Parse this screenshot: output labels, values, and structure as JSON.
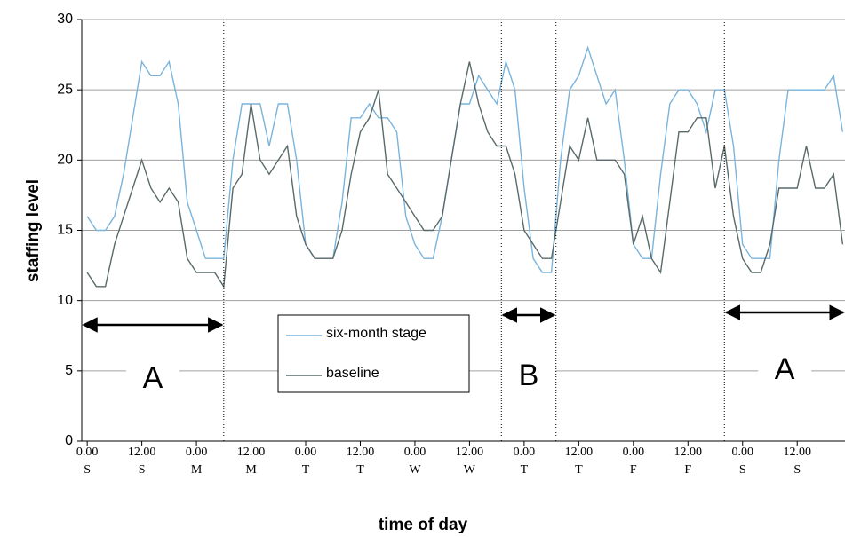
{
  "chart_data": {
    "type": "line",
    "x_label": "time of day",
    "y_label": "staffing level",
    "x": [
      0,
      2,
      4,
      6,
      8,
      10,
      12,
      14,
      16,
      18,
      20,
      22,
      24,
      26,
      28,
      30,
      32,
      34,
      36,
      38,
      40,
      42,
      44,
      46,
      48,
      50,
      52,
      54,
      56,
      58,
      60,
      62,
      64,
      66,
      68,
      70,
      72,
      74,
      76,
      78,
      80,
      82,
      84,
      86,
      88,
      90,
      92,
      94,
      96,
      98,
      100,
      102,
      104,
      106,
      108,
      110,
      112,
      114,
      116,
      118,
      120,
      122,
      124,
      126,
      128,
      130,
      132,
      134,
      136,
      138,
      140,
      142,
      144,
      146,
      148,
      150,
      152,
      154,
      156,
      158,
      160,
      162,
      164,
      166
    ],
    "series": [
      {
        "name": "six-month stage",
        "color": "#79b4dc",
        "values": [
          16,
          15,
          15,
          16,
          19,
          23,
          27,
          26,
          26,
          27,
          24,
          17,
          15,
          13,
          13,
          13,
          20,
          24,
          24,
          24,
          21,
          24,
          24,
          20,
          14,
          13,
          13,
          13,
          17,
          23,
          23,
          24,
          23,
          23,
          22,
          16,
          14,
          13,
          13,
          16,
          20,
          24,
          24,
          26,
          25,
          24,
          27,
          25,
          18,
          13,
          12,
          12,
          20,
          25,
          26,
          28,
          26,
          24,
          25,
          20,
          14,
          13,
          13,
          19,
          24,
          25,
          25,
          24,
          22,
          25,
          25,
          21,
          14,
          13,
          13,
          13,
          20,
          25,
          25,
          25,
          25,
          25,
          26,
          22
        ]
      },
      {
        "name": "baseline",
        "color": "#5a6a6a",
        "values": [
          12,
          11,
          11,
          14,
          16,
          18,
          20,
          18,
          17,
          18,
          17,
          13,
          12,
          12,
          12,
          11,
          18,
          19,
          24,
          20,
          19,
          20,
          21,
          16,
          14,
          13,
          13,
          13,
          15,
          19,
          22,
          23,
          25,
          19,
          18,
          17,
          16,
          15,
          15,
          16,
          20,
          24,
          27,
          24,
          22,
          21,
          21,
          19,
          15,
          14,
          13,
          13,
          17,
          21,
          20,
          23,
          20,
          20,
          20,
          19,
          14,
          16,
          13,
          12,
          17,
          22,
          22,
          23,
          23,
          18,
          21,
          16,
          13,
          12,
          12,
          14,
          18,
          18,
          18,
          21,
          18,
          18,
          19,
          14
        ]
      }
    ],
    "xlim": [
      -1.2,
      166.5
    ],
    "xticks": [
      {
        "value": 0,
        "label": "0.00",
        "day": "S"
      },
      {
        "value": 12,
        "label": "12.00",
        "day": "S"
      },
      {
        "value": 24,
        "label": "0.00",
        "day": "M"
      },
      {
        "value": 36,
        "label": "12.00",
        "day": "M"
      },
      {
        "value": 48,
        "label": "0.00",
        "day": "T"
      },
      {
        "value": 60,
        "label": "12.00",
        "day": "T"
      },
      {
        "value": 72,
        "label": "0.00",
        "day": "W"
      },
      {
        "value": 84,
        "label": "12.00",
        "day": "W"
      },
      {
        "value": 96,
        "label": "0.00",
        "day": "T"
      },
      {
        "value": 108,
        "label": "12.00",
        "day": "T"
      },
      {
        "value": 120,
        "label": "0.00",
        "day": "F"
      },
      {
        "value": 132,
        "label": "12.00",
        "day": "F"
      },
      {
        "value": 144,
        "label": "0.00",
        "day": "S"
      },
      {
        "value": 156,
        "label": "12.00",
        "day": "S"
      }
    ],
    "ylim": [
      0,
      30
    ],
    "yticks": [
      0,
      5,
      10,
      15,
      20,
      25,
      30
    ],
    "grid": true,
    "periods": [
      {
        "label": "A",
        "start": -1.2,
        "end": 30
      },
      {
        "label": "B",
        "start": 91,
        "end": 103
      },
      {
        "label": "A",
        "start": 140,
        "end": 166.5
      }
    ]
  }
}
